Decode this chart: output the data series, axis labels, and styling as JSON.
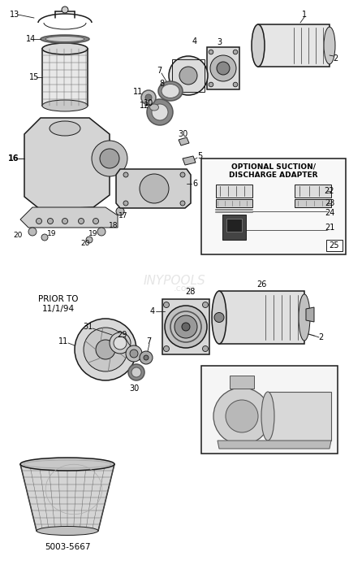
{
  "bg_color": "#ffffff",
  "line_color": "#1a1a1a",
  "figure_width": 4.31,
  "figure_height": 7.16,
  "dpi": 100,
  "watermark": "INYPOOLS",
  "part_number": "5003-5667",
  "adapter_title_1": "OPTIONAL SUCTION/",
  "adapter_title_2": "DISCHARGE ADAPTER",
  "prior_to_1": "PRIOR TO",
  "prior_to_2": "11/1/94"
}
